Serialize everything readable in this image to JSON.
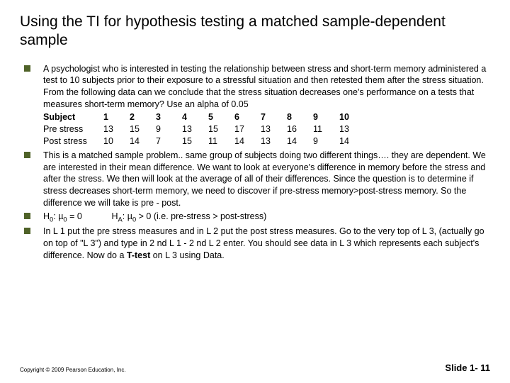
{
  "title": "Using the TI for hypothesis testing a matched sample-dependent sample",
  "bullets": [
    {
      "type": "paradata",
      "text": "A psychologist who is interested in testing the relationship between stress and short-term memory administered a test to 10 subjects prior to their exposure to a stressful situation and then retested them after the stress situation. From the following data can we conclude that the stress situation decreases one's performance on a tests that measures short-term memory? Use an alpha of 0.05",
      "table": {
        "headers": [
          "Subject",
          "1",
          "2",
          "3",
          "4",
          "5",
          "6",
          "7",
          "8",
          "9",
          "10"
        ],
        "rows": [
          [
            "Pre stress",
            "13",
            "15",
            "9",
            "13",
            "15",
            "17",
            "13",
            "16",
            "11",
            "13"
          ],
          [
            "Post stress",
            "10",
            "14",
            "7",
            "15",
            "11",
            "14",
            "13",
            "14",
            "9",
            "14"
          ]
        ]
      },
      "bold_header_label": "Subject"
    },
    {
      "type": "plain",
      "text": "This is a matched sample problem.. same group of subjects doing two different things…. they are dependent. We are interested in their mean difference. We want to look at everyone's difference in memory before the stress and after the stress. We then will look at the average of all of their differences. Since the question is to determine if stress decreases short-term memory, we need to discover if pre-stress memory>post-stress memory. So the difference we will take is pre - post."
    },
    {
      "type": "hypotheses",
      "h0_label": "H",
      "h0_sub": "0",
      "h0_colon": ": µ",
      "h0_sub2": "0",
      "h0_rest": " = 0",
      "gap": "            ",
      "ha_label": "H",
      "ha_sub": "A",
      "ha_colon": ": µ",
      "ha_sub2": "0",
      "ha_rest": " > 0  (i.e. pre-stress > post-stress)"
    },
    {
      "type": "rich",
      "pre": "In L 1 put the pre stress measures and in L 2 put the post stress measures. Go to the very top of L 3, (actually go on top of \"L 3\") and type in 2 nd L 1 - 2 nd L 2 enter. You should see data in L 3 which represents each subject's difference. Now do a ",
      "bold": "T-test",
      "post": " on L 3 using Data."
    }
  ],
  "copyright": "Copyright © 2009 Pearson Education, Inc.",
  "slide_number": "Slide 1- 11",
  "colors": {
    "bullet": "#4f6228",
    "text": "#000000",
    "bg": "#ffffff"
  }
}
